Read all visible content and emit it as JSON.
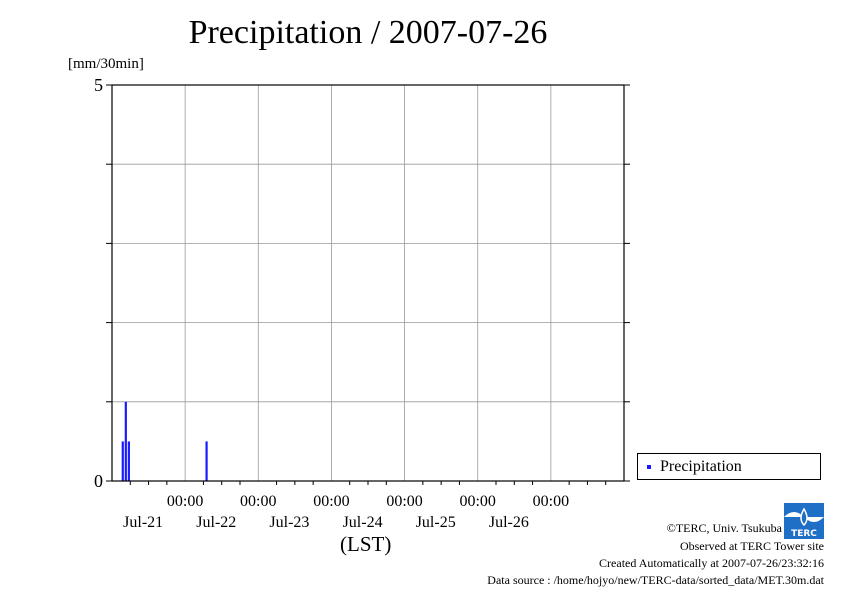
{
  "chart_data": {
    "type": "bar",
    "title": "Precipitation / 2007-07-26",
    "ylabel": "[mm/30min]",
    "xlabel": "(LST)",
    "ylim": [
      0,
      5
    ],
    "y_ticks_labeled": [
      "0",
      "5"
    ],
    "y_grid": [
      0,
      1,
      2,
      3,
      4,
      5
    ],
    "x_ticks": [
      {
        "time": "00:00",
        "date": "Jul-21"
      },
      {
        "time": "00:00",
        "date": "Jul-22"
      },
      {
        "time": "00:00",
        "date": "Jul-23"
      },
      {
        "time": "00:00",
        "date": "Jul-24"
      },
      {
        "time": "00:00",
        "date": "Jul-25"
      },
      {
        "time": "00:00",
        "date": "Jul-26"
      }
    ],
    "xlim": [
      "2007-07-20 00:00",
      "2007-07-26 24:00"
    ],
    "grid": true,
    "legend_position": "right-bottom",
    "series": [
      {
        "name": "Precipitation",
        "color": "#1a1aff",
        "points": [
          {
            "t": "2007-07-20 03:30",
            "v": 0.5
          },
          {
            "t": "2007-07-20 04:30",
            "v": 1.0
          },
          {
            "t": "2007-07-20 05:30",
            "v": 0.5
          },
          {
            "t": "2007-07-21 07:00",
            "v": 0.5
          }
        ]
      }
    ]
  },
  "footer": {
    "copyright": "©TERC, Univ. Tsukuba",
    "observed": "Observed at TERC Tower site",
    "created": "Created Automatically at 2007-07-26/23:32:16",
    "source": "Data source : /home/hojyo/new/TERC-data/sorted_data/MET.30m.dat"
  },
  "logo_text": "TERC"
}
